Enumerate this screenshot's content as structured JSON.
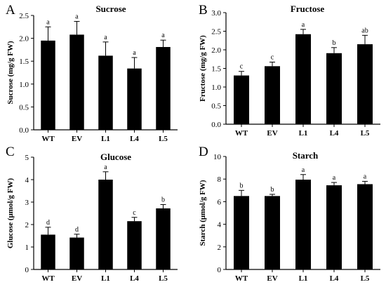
{
  "chart_data": [
    {
      "panel_label": "A",
      "type": "bar",
      "title": "Sucrose",
      "ylabel": "Sucrose (mg/g FW)",
      "categories": [
        "WT",
        "EV",
        "L1",
        "L4",
        "L5"
      ],
      "values": [
        1.95,
        2.08,
        1.62,
        1.34,
        1.81
      ],
      "errors": [
        0.3,
        0.29,
        0.3,
        0.24,
        0.15
      ],
      "significance": [
        "a",
        "a",
        "a",
        "a",
        "a"
      ],
      "ylim": [
        0,
        2.5
      ],
      "yticks": [
        0.0,
        0.5,
        1.0,
        1.5,
        2.0,
        2.5
      ],
      "ytick_labels": [
        "0.0",
        "0.5",
        "1.0",
        "1.5",
        "2.0",
        "2.5"
      ]
    },
    {
      "panel_label": "B",
      "type": "bar",
      "title": "Fructose",
      "ylabel": "Fructose (mg/g FW)",
      "categories": [
        "WT",
        "EV",
        "L1",
        "L4",
        "L5"
      ],
      "values": [
        1.31,
        1.56,
        2.42,
        1.91,
        2.15
      ],
      "errors": [
        0.11,
        0.11,
        0.13,
        0.15,
        0.24
      ],
      "significance": [
        "c",
        "c",
        "a",
        "b",
        "ab"
      ],
      "ylim": [
        0,
        3.0
      ],
      "yticks": [
        0.0,
        0.5,
        1.0,
        1.5,
        2.0,
        2.5,
        3.0
      ],
      "ytick_labels": [
        "0.0",
        "0.5",
        "1.0",
        "1.5",
        "2.0",
        "2.5",
        "3.0"
      ]
    },
    {
      "panel_label": "C",
      "type": "bar",
      "title": "Glucose",
      "ylabel": "Glucose (μmol/g FW)",
      "categories": [
        "WT",
        "EV",
        "L1",
        "L4",
        "L5"
      ],
      "values": [
        1.55,
        1.42,
        4.0,
        2.15,
        2.72
      ],
      "errors": [
        0.33,
        0.15,
        0.35,
        0.17,
        0.17
      ],
      "significance": [
        "d",
        "d",
        "a",
        "c",
        "b"
      ],
      "ylim": [
        0,
        5
      ],
      "yticks": [
        0,
        1,
        2,
        3,
        4,
        5
      ],
      "ytick_labels": [
        "0",
        "1",
        "2",
        "3",
        "4",
        "5"
      ]
    },
    {
      "panel_label": "D",
      "type": "bar",
      "title": "Starch",
      "ylabel": "Starch (μmol/g FW)",
      "categories": [
        "WT",
        "EV",
        "L1",
        "L4",
        "L5"
      ],
      "values": [
        6.5,
        6.5,
        7.95,
        7.45,
        7.55
      ],
      "errors": [
        0.5,
        0.15,
        0.45,
        0.25,
        0.25
      ],
      "significance": [
        "b",
        "b",
        "a",
        "a",
        "a"
      ],
      "ylim": [
        0,
        10
      ],
      "yticks": [
        0,
        2,
        4,
        6,
        8,
        10
      ],
      "ytick_labels": [
        "0",
        "2",
        "4",
        "6",
        "8",
        "10"
      ]
    }
  ]
}
